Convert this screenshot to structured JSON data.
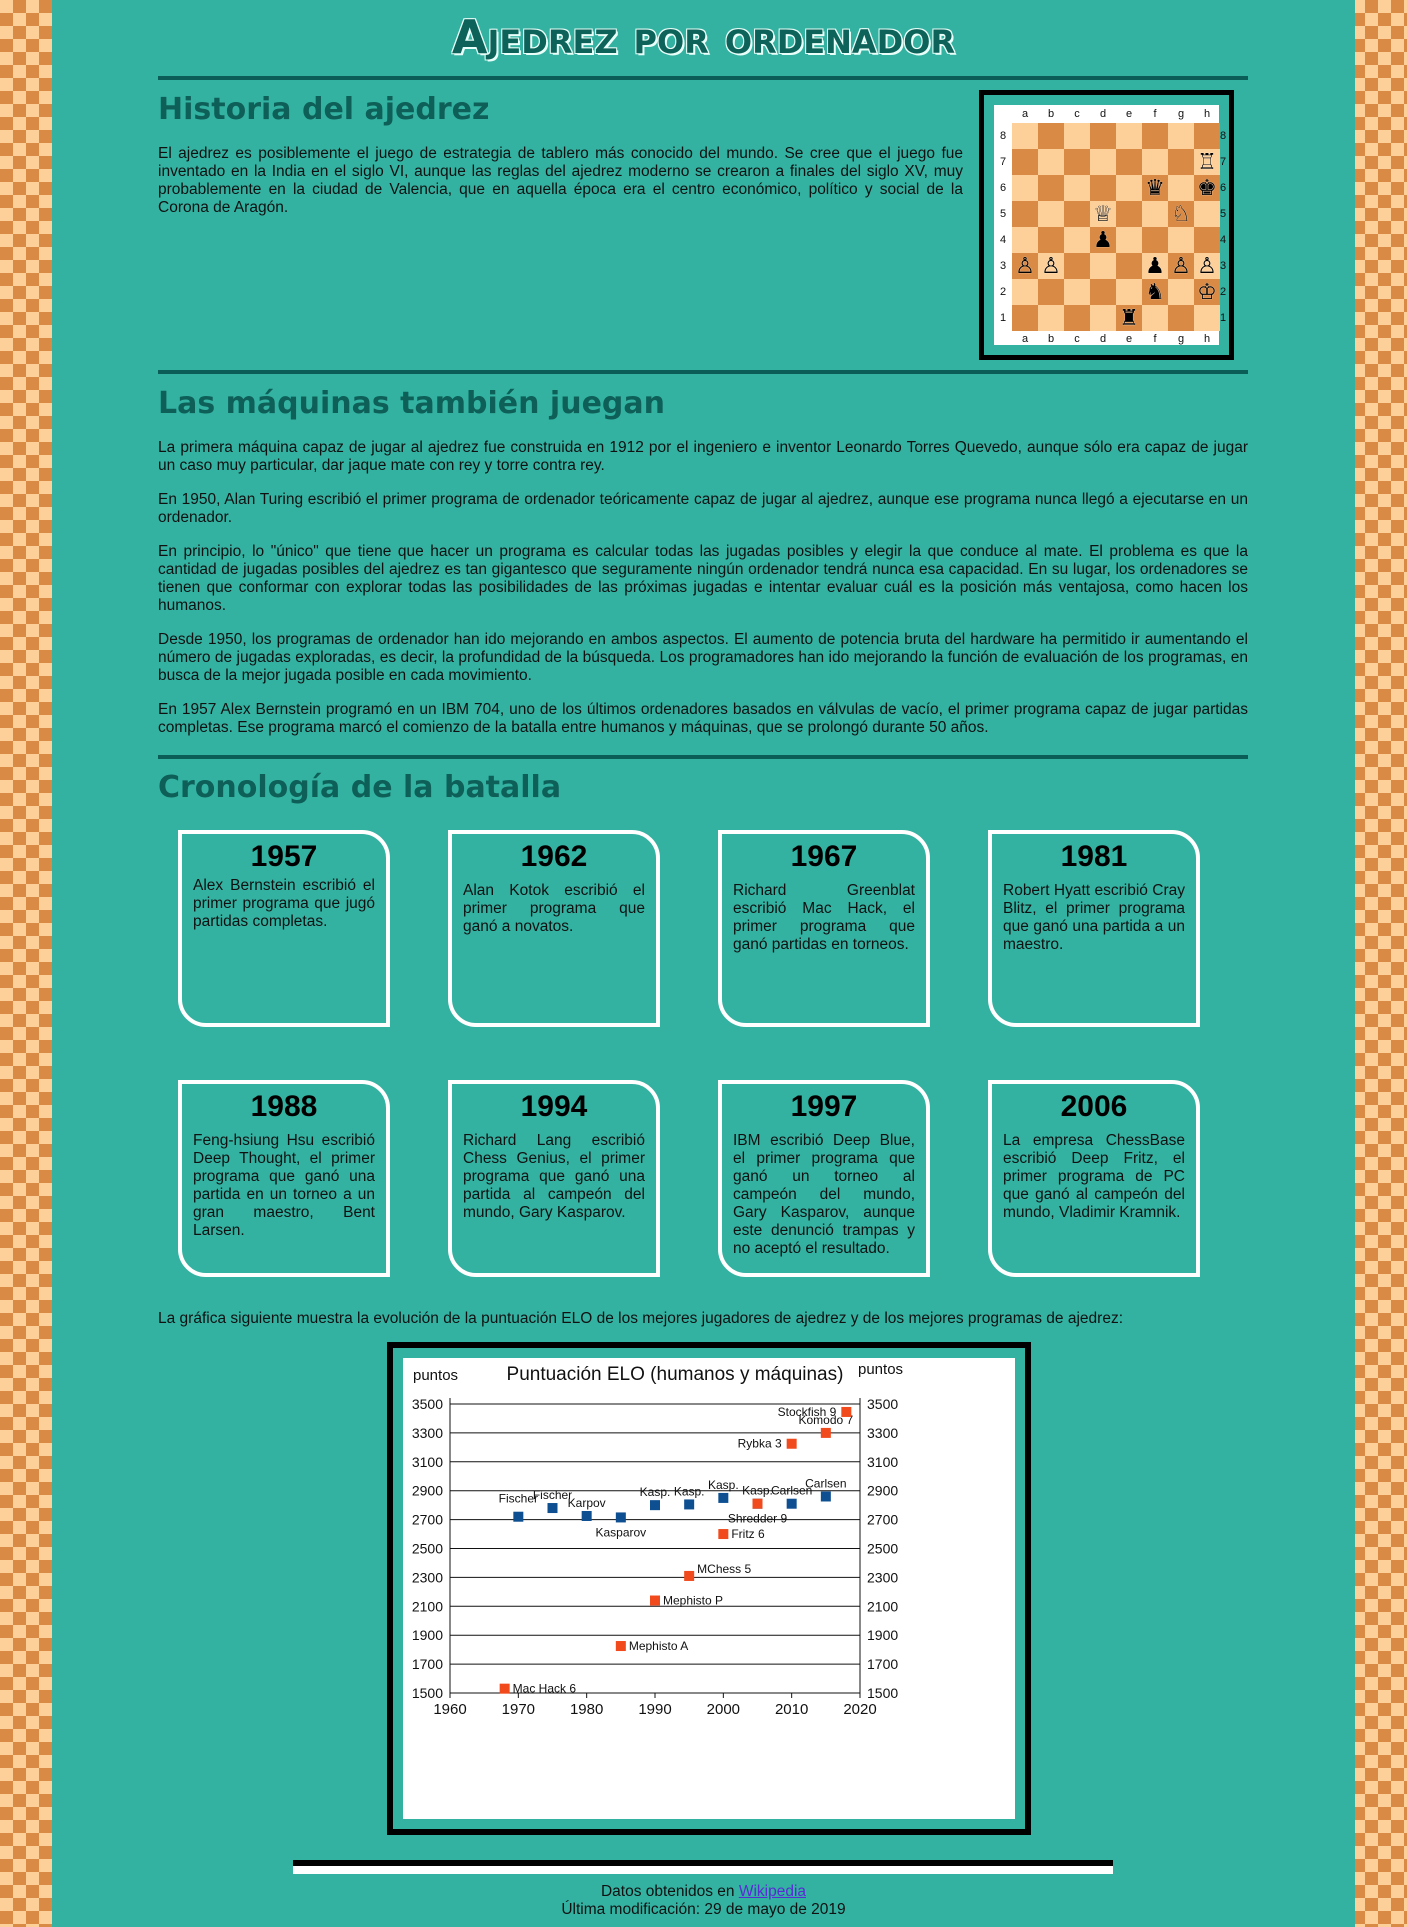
{
  "title": "Ajedrez por ordenador",
  "historia": {
    "heading": "Historia del ajedrez",
    "text": "El ajedrez es posiblemente el juego de estrategia de tablero más conocido del mundo. Se cree que el juego fue inventado en la India en el siglo VI, aunque las reglas del ajedrez moderno se crearon a finales del siglo XV, muy probablemente en la ciudad de Valencia, que en aquella época era el centro económico, político y social de la Corona de Aragón."
  },
  "board": {
    "files": [
      "a",
      "b",
      "c",
      "d",
      "e",
      "f",
      "g",
      "h"
    ],
    "ranks": [
      "8",
      "7",
      "6",
      "5",
      "4",
      "3",
      "2",
      "1"
    ],
    "pieces": [
      {
        "square": "h7",
        "piece": "white-rook",
        "glyph": "♖"
      },
      {
        "square": "f6",
        "piece": "black-queen",
        "glyph": "♛"
      },
      {
        "square": "h6",
        "piece": "black-king",
        "glyph": "♚"
      },
      {
        "square": "d5",
        "piece": "white-queen",
        "glyph": "♕"
      },
      {
        "square": "g5",
        "piece": "white-knight",
        "glyph": "♘"
      },
      {
        "square": "d4",
        "piece": "black-pawn",
        "glyph": "♟"
      },
      {
        "square": "a3",
        "piece": "white-pawn",
        "glyph": "♙"
      },
      {
        "square": "b3",
        "piece": "white-pawn",
        "glyph": "♙"
      },
      {
        "square": "f3",
        "piece": "black-pawn",
        "glyph": "♟"
      },
      {
        "square": "g3",
        "piece": "white-pawn",
        "glyph": "♙"
      },
      {
        "square": "h3",
        "piece": "white-pawn",
        "glyph": "♙"
      },
      {
        "square": "f2",
        "piece": "black-knight",
        "glyph": "♞"
      },
      {
        "square": "h2",
        "piece": "white-king",
        "glyph": "♔"
      },
      {
        "square": "e1",
        "piece": "black-rook",
        "glyph": "♜"
      }
    ]
  },
  "maquinas": {
    "heading": "Las máquinas también juegan",
    "paragraphs": [
      "La primera máquina capaz de jugar al ajedrez fue construida en 1912 por el ingeniero e inventor Leonardo Torres Quevedo, aunque sólo era capaz de jugar un caso muy particular, dar jaque mate con rey y torre contra rey.",
      "En 1950, Alan Turing escribió el primer programa de ordenador teóricamente capaz de jugar al ajedrez, aunque ese programa nunca llegó a ejecutarse en un ordenador.",
      "En principio, lo \"único\" que tiene que hacer un programa es calcular todas las jugadas posibles y elegir la que conduce al mate. El problema es que la cantidad de jugadas posibles del ajedrez es tan gigantesco que seguramente ningún ordenador tendrá nunca esa capacidad. En su lugar, los ordenadores se tienen que conformar con explorar todas las posibilidades de las próximas jugadas e intentar evaluar cuál es la posición más ventajosa, como hacen los humanos.",
      "Desde 1950, los programas de ordenador han ido mejorando en ambos aspectos. El aumento de potencia bruta del hardware ha permitido ir aumentando el número de jugadas exploradas, es decir, la profundidad de la búsqueda. Los programadores han ido mejorando la función de evaluación de los programas, en busca de la mejor jugada posible en cada movimiento.",
      "En 1957 Alex Bernstein programó en un IBM 704, uno de los últimos ordenadores basados en válvulas de vacío, el primer programa capaz de jugar partidas completas. Ese programa marcó el comienzo de la batalla entre humanos y máquinas, que se prolongó durante 50 años."
    ]
  },
  "cronologia": {
    "heading": "Cronología de la batalla",
    "cards": [
      {
        "year": "1957",
        "text": "Alex Bernstein escribió el primer programa que jugó partidas completas."
      },
      {
        "year": "1962",
        "text": "Alan Kotok escribió el primer programa que ganó a novatos."
      },
      {
        "year": "1967",
        "text": "Richard Greenblat escribió Mac Hack, el primer programa que ganó partidas en torneos."
      },
      {
        "year": "1981",
        "text": "Robert Hyatt escribió Cray Blitz, el primer programa que ganó una partida a un maestro."
      },
      {
        "year": "1988",
        "text": "Feng-hsiung Hsu escribió Deep Thought, el primer programa que ganó una partida en un torneo a un gran maestro, Bent Larsen."
      },
      {
        "year": "1994",
        "text": "Richard Lang escribió Chess Genius, el primer programa que ganó una partida al campeón del mundo, Gary Kasparov."
      },
      {
        "year": "1997",
        "text": "IBM escribió Deep Blue, el primer programa que ganó un torneo al campeón del mundo, Gary Kasparov, aunque este denunció trampas y no aceptó el resultado."
      },
      {
        "year": "2006",
        "text": "La empresa ChessBase escribió Deep Fritz, el primer programa de PC que ganó al campeón del mundo, Vladimir Kramnik."
      }
    ],
    "chart_intro": "La gráfica siguiente muestra la evolución de la puntuación ELO de los mejores jugadores de ajedrez y de los mejores programas de ajedrez:"
  },
  "chart_data": {
    "type": "scatter",
    "title": "Puntuación ELO (humanos y máquinas)",
    "ylabel_left": "puntos",
    "ylabel_right": "puntos",
    "xlim": [
      1960,
      2020
    ],
    "ylim": [
      1500,
      3600
    ],
    "xticks": [
      1960,
      1970,
      1980,
      1990,
      2000,
      2010,
      2020
    ],
    "yticks": [
      1500,
      1700,
      1900,
      2100,
      2300,
      2500,
      2700,
      2900,
      3100,
      3300,
      3500
    ],
    "grid": "horizontal",
    "series": [
      {
        "color": "#0e4f91",
        "points": [
          {
            "x": 1970,
            "y": 2720,
            "label": "Fischer",
            "label_pos": "above-left"
          },
          {
            "x": 1975,
            "y": 2780,
            "label": "Fischer",
            "label_pos": "above"
          },
          {
            "x": 1980,
            "y": 2725,
            "label": "Karpov",
            "label_pos": "above"
          },
          {
            "x": 1985,
            "y": 2715,
            "label": "Kasparov",
            "label_pos": "below"
          },
          {
            "x": 1990,
            "y": 2800,
            "label": "Kasp.",
            "label_pos": "above"
          },
          {
            "x": 1995,
            "y": 2805,
            "label": "Kasp.",
            "label_pos": "above"
          },
          {
            "x": 2000,
            "y": 2850,
            "label": "Kasp.",
            "label_pos": "above"
          },
          {
            "x": 2005,
            "y": 2810,
            "label": "Kasp.",
            "label_pos": "above"
          },
          {
            "x": 2010,
            "y": 2810,
            "label": "Carlsen",
            "label_pos": "above"
          },
          {
            "x": 2015,
            "y": 2860,
            "label": "Carlsen",
            "label_pos": "above"
          }
        ]
      },
      {
        "color": "#f04a1d",
        "points": [
          {
            "x": 1968,
            "y": 1530,
            "label": "Mac Hack 6",
            "label_pos": "right"
          },
          {
            "x": 1985,
            "y": 1825,
            "label": "Mephisto A",
            "label_pos": "right"
          },
          {
            "x": 1990,
            "y": 2140,
            "label": "Mephisto P",
            "label_pos": "right"
          },
          {
            "x": 1995,
            "y": 2310,
            "label": "MChess 5",
            "label_pos": "right-up"
          },
          {
            "x": 2000,
            "y": 2600,
            "label": "Fritz 6",
            "label_pos": "right"
          },
          {
            "x": 2005,
            "y": 2810,
            "label": "Shredder 9",
            "label_pos": "below"
          },
          {
            "x": 2010,
            "y": 3225,
            "label": "Rybka 3",
            "label_pos": "left"
          },
          {
            "x": 2015,
            "y": 3300,
            "label": "Komodo 7",
            "label_pos": "above"
          },
          {
            "x": 2018,
            "y": 3445,
            "label": "Stockfish 9",
            "label_pos": "left"
          }
        ]
      }
    ]
  },
  "footer": {
    "source_prefix": "Datos obtenidos en ",
    "source_link": "Wikipedia",
    "modified": "Última modificación: 29 de mayo de 2019"
  }
}
